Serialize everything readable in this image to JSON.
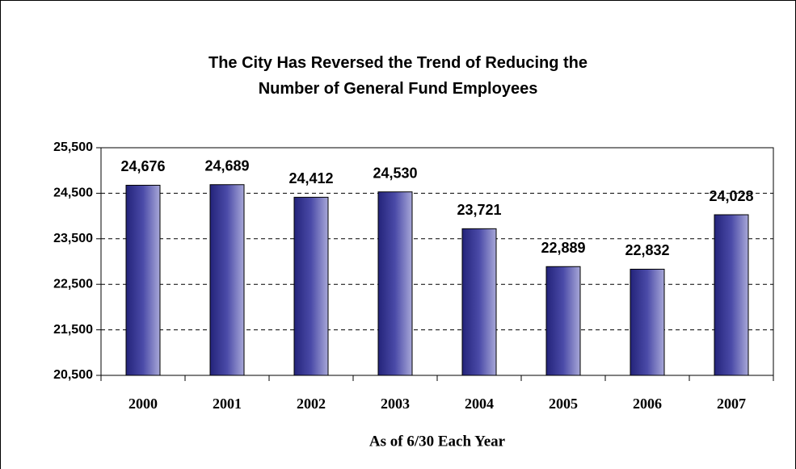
{
  "chart_data": {
    "type": "bar",
    "title": "The City Has Reversed the Trend of Reducing the Number of General Fund Employees",
    "x_label": "As of 6/30 Each Year",
    "categories": [
      "2000",
      "2001",
      "2002",
      "2003",
      "2004",
      "2005",
      "2006",
      "2007"
    ],
    "values": [
      24676,
      24689,
      24412,
      24530,
      23721,
      22889,
      22832,
      24028
    ],
    "value_labels": [
      "24,676",
      "24,689",
      "24,412",
      "24,530",
      "23,721",
      "22,889",
      "22,832",
      "24,028"
    ],
    "color": "#4b4ba8",
    "ylim": [
      20500,
      25500
    ],
    "yticks": [
      {
        "value": 20500,
        "label": "20,500"
      },
      {
        "value": 21500,
        "label": "21,500"
      },
      {
        "value": 22500,
        "label": "22,500"
      },
      {
        "value": 23500,
        "label": "23,500"
      },
      {
        "value": 24500,
        "label": "24,500"
      },
      {
        "value": 25500,
        "label": "25,500"
      }
    ],
    "grid": true
  }
}
